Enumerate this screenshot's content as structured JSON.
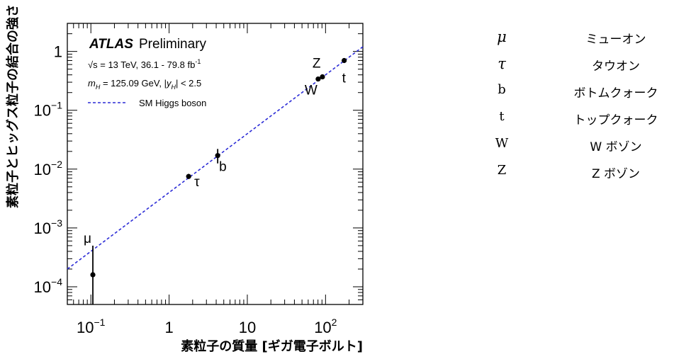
{
  "chart_data": {
    "type": "scatter",
    "xlabel": "素粒子の質量 [ギガ電子ボルト]",
    "ylabel": "素粒子とヒッグス粒子の結合の強さ",
    "xscale": "log",
    "yscale": "log",
    "xlim": [
      0.05,
      300
    ],
    "ylim": [
      5e-05,
      3
    ],
    "x_tick_labels": [
      {
        "value": 0.1,
        "base": "10",
        "exp": "−1"
      },
      {
        "value": 1,
        "base": "1",
        "exp": ""
      },
      {
        "value": 10,
        "base": "10",
        "exp": ""
      },
      {
        "value": 100,
        "base": "10",
        "exp": "2"
      }
    ],
    "y_tick_labels": [
      {
        "value": 0.0001,
        "base": "10",
        "exp": "−4"
      },
      {
        "value": 0.001,
        "base": "10",
        "exp": "−3"
      },
      {
        "value": 0.01,
        "base": "10",
        "exp": "−2"
      },
      {
        "value": 0.1,
        "base": "10",
        "exp": "−1"
      },
      {
        "value": 1,
        "base": "1",
        "exp": ""
      }
    ],
    "atlas_label": "ATLAS",
    "atlas_status": "Preliminary",
    "info_lines": {
      "energy_prefix": "√s = 13 TeV, 36.1 - 79.8 fb",
      "energy_exp": "-1",
      "mass_line_main": " = 125.09 GeV, |",
      "mass_symbol": "m",
      "mass_sub": "H",
      "rapidity_symbol": "y",
      "rapidity_sub": "H",
      "rapidity_tail": "| < 2.5"
    },
    "legend": {
      "label": "SM Higgs boson",
      "style": "dashed",
      "color": "#2b2bd6"
    },
    "sm_line": {
      "x_start": 0.05,
      "x_end": 300,
      "y_start": 0.0002,
      "y_end": 1.2
    },
    "points": [
      {
        "label": "μ",
        "x": 0.106,
        "y": 0.00016,
        "y_low": 4.5e-05,
        "y_high": 0.0005
      },
      {
        "label": "τ",
        "x": 1.777,
        "y": 0.0075,
        "y_low": 0.0068,
        "y_high": 0.0083
      },
      {
        "label": "b",
        "x": 4.18,
        "y": 0.017,
        "y_low": 0.0125,
        "y_high": 0.022
      },
      {
        "label": "W",
        "x": 80.4,
        "y": 0.34,
        "y_low": 0.31,
        "y_high": 0.37
      },
      {
        "label": "Z",
        "x": 91.2,
        "y": 0.37,
        "y_low": 0.34,
        "y_high": 0.4
      },
      {
        "label": "t",
        "x": 173,
        "y": 0.7,
        "y_low": 0.64,
        "y_high": 0.76
      }
    ]
  },
  "particle_table": [
    {
      "symbol": "μ",
      "name": "ミューオン",
      "greek": true
    },
    {
      "symbol": "τ",
      "name": "タウオン",
      "greek": true
    },
    {
      "symbol": "b",
      "name": "ボトムクォーク",
      "greek": false
    },
    {
      "symbol": "t",
      "name": "トップクォーク",
      "greek": false
    },
    {
      "symbol": "W",
      "name": "W ボゾン",
      "greek": false
    },
    {
      "symbol": "Z",
      "name": "Z ボゾン",
      "greek": false
    }
  ]
}
